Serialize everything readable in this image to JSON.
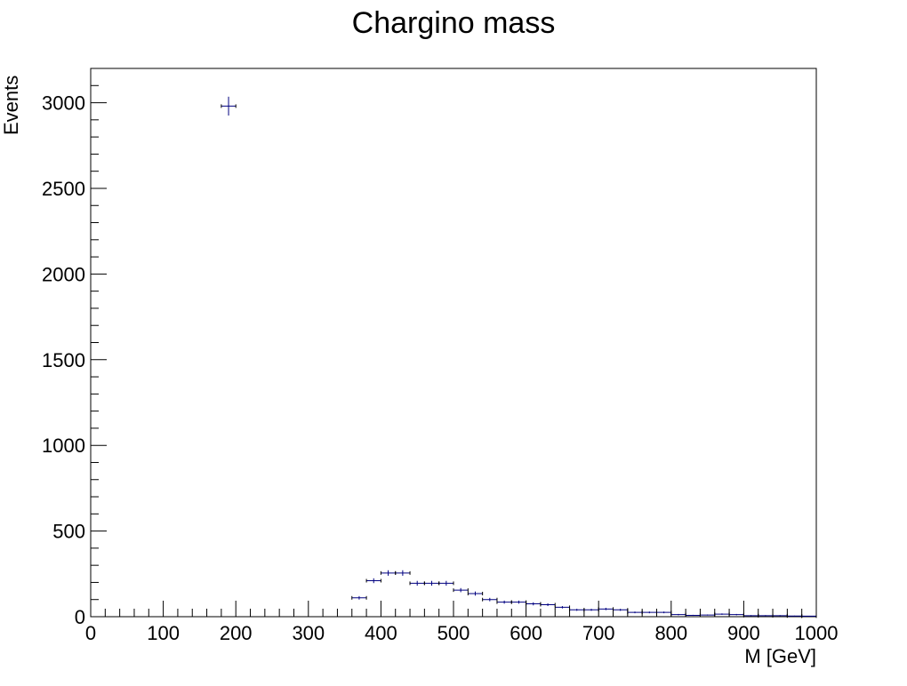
{
  "chart_data": {
    "type": "scatter",
    "title": "Chargino mass",
    "xlabel": "M [GeV]",
    "ylabel": "Events",
    "xlim": [
      0,
      1000
    ],
    "ylim": [
      0,
      3200
    ],
    "x_ticks": [
      "0",
      "100",
      "200",
      "300",
      "400",
      "500",
      "600",
      "700",
      "800",
      "900",
      "1000"
    ],
    "y_ticks": [
      "0",
      "500",
      "1000",
      "1500",
      "2000",
      "2500",
      "3000"
    ],
    "marker_color": "#000080",
    "bin_width": 20,
    "points": [
      {
        "x": 190,
        "y": 2980,
        "err": 55
      },
      {
        "x": 370,
        "y": 110,
        "err": 10
      },
      {
        "x": 390,
        "y": 210,
        "err": 14
      },
      {
        "x": 410,
        "y": 255,
        "err": 16
      },
      {
        "x": 430,
        "y": 255,
        "err": 16
      },
      {
        "x": 450,
        "y": 195,
        "err": 14
      },
      {
        "x": 470,
        "y": 195,
        "err": 14
      },
      {
        "x": 490,
        "y": 195,
        "err": 14
      },
      {
        "x": 510,
        "y": 155,
        "err": 12
      },
      {
        "x": 530,
        "y": 135,
        "err": 12
      },
      {
        "x": 550,
        "y": 100,
        "err": 10
      },
      {
        "x": 570,
        "y": 85,
        "err": 9
      },
      {
        "x": 590,
        "y": 85,
        "err": 9
      },
      {
        "x": 610,
        "y": 75,
        "err": 9
      },
      {
        "x": 630,
        "y": 70,
        "err": 8
      },
      {
        "x": 650,
        "y": 55,
        "err": 7
      },
      {
        "x": 670,
        "y": 40,
        "err": 6
      },
      {
        "x": 690,
        "y": 40,
        "err": 6
      },
      {
        "x": 710,
        "y": 45,
        "err": 7
      },
      {
        "x": 730,
        "y": 40,
        "err": 6
      },
      {
        "x": 750,
        "y": 25,
        "err": 5
      },
      {
        "x": 770,
        "y": 25,
        "err": 5
      },
      {
        "x": 790,
        "y": 25,
        "err": 5
      },
      {
        "x": 810,
        "y": 12,
        "err": 4
      },
      {
        "x": 830,
        "y": 8,
        "err": 3
      },
      {
        "x": 850,
        "y": 10,
        "err": 3
      },
      {
        "x": 870,
        "y": 15,
        "err": 4
      },
      {
        "x": 890,
        "y": 12,
        "err": 4
      },
      {
        "x": 910,
        "y": 6,
        "err": 3
      },
      {
        "x": 930,
        "y": 6,
        "err": 3
      },
      {
        "x": 950,
        "y": 6,
        "err": 3
      },
      {
        "x": 970,
        "y": 4,
        "err": 2
      },
      {
        "x": 990,
        "y": 3,
        "err": 2
      }
    ]
  }
}
